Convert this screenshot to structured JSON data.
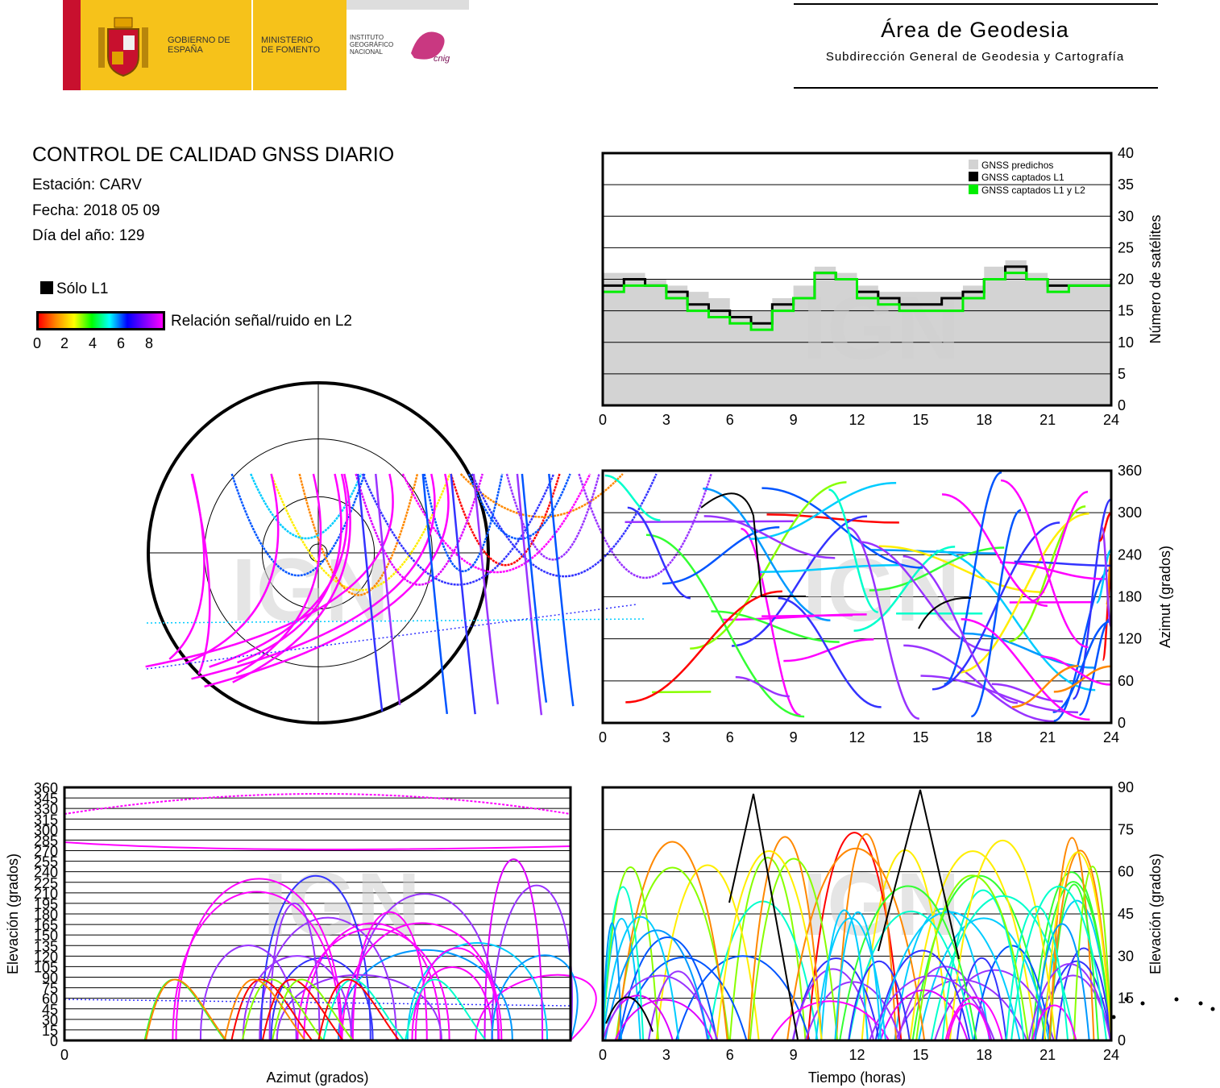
{
  "header": {
    "gov": "GOBIERNO DE ESPAÑA",
    "ministry": "MINISTERIO DE FOMENTO",
    "institute": "INSTITUTO GEOGRÁFICO NACIONAL",
    "cnig": "cnig",
    "area_title": "Área de Geodesia",
    "area_subtitle": "Subdirección General de Geodesia y Cartografía"
  },
  "info": {
    "title": "CONTROL DE CALIDAD GNSS DIARIO",
    "station": "Estación: CARV",
    "date": "Fecha: 2018 05 09",
    "doy": "Día del año: 129"
  },
  "legend": {
    "l1_only": "Sólo L1",
    "snr_label": "Relación señal/ruido en L2",
    "snr_ticks": [
      "0",
      "2",
      "4",
      "6",
      "8"
    ],
    "colors": [
      "#ff0000",
      "#ff8c00",
      "#ffff00",
      "#00ff00",
      "#00ffff",
      "#0000ff",
      "#8000ff",
      "#ff00ff"
    ]
  },
  "watermark": "IGN",
  "chart_data": [
    {
      "id": "satellites",
      "type": "area",
      "ylabel": "Número de satélites",
      "ylim": [
        0,
        40
      ],
      "yticks": [
        0,
        5,
        10,
        15,
        20,
        25,
        30,
        35,
        40
      ],
      "xlim": [
        0,
        24
      ],
      "xticks": [
        0,
        3,
        6,
        9,
        12,
        15,
        18,
        21,
        24
      ],
      "legend": [
        "GNSS predichos",
        "GNSS captados L1",
        "GNSS captados L1 y L2"
      ],
      "colors": {
        "predicted": "#d3d3d3",
        "l1": "#000000",
        "l1l2": "#00ee00"
      },
      "x": [
        0,
        1,
        2,
        3,
        4,
        5,
        6,
        7,
        8,
        9,
        10,
        11,
        12,
        13,
        14,
        15,
        16,
        17,
        18,
        19,
        20,
        21,
        22,
        23,
        24
      ],
      "predicted": [
        21,
        21,
        20,
        19,
        18,
        17,
        15,
        15,
        17,
        19,
        22,
        21,
        19,
        18,
        18,
        18,
        18,
        19,
        22,
        23,
        21,
        20,
        20,
        20,
        20
      ],
      "l1": [
        19,
        20,
        19,
        18,
        16,
        15,
        14,
        13,
        16,
        17,
        21,
        20,
        18,
        17,
        16,
        16,
        17,
        18,
        20,
        22,
        20,
        19,
        19,
        19,
        19
      ],
      "l1l2": [
        18,
        19,
        19,
        17,
        15,
        14,
        13,
        12,
        15,
        17,
        21,
        20,
        17,
        16,
        15,
        15,
        15,
        17,
        20,
        21,
        20,
        18,
        19,
        19,
        18
      ]
    },
    {
      "id": "skyplot",
      "type": "scatter",
      "rings_elevation": [
        0,
        30,
        60,
        90
      ]
    },
    {
      "id": "azimuth_time",
      "type": "scatter",
      "ylabel": "Azimut (grados)",
      "ylim": [
        0,
        360
      ],
      "yticks": [
        0,
        60,
        120,
        180,
        240,
        300,
        360
      ],
      "xlim": [
        0,
        24
      ],
      "xticks": [
        0,
        3,
        6,
        9,
        12,
        15,
        18,
        21,
        24
      ]
    },
    {
      "id": "elev_azimuth",
      "type": "scatter",
      "xlabel": "Azimut (grados)",
      "ylabel": "Elevación (grados)",
      "xlim": [
        0,
        360
      ],
      "xticks": [
        0
      ],
      "ylim": [
        0,
        360
      ],
      "yticks": [
        0,
        15,
        30,
        45,
        60,
        75,
        90,
        105,
        120,
        135,
        150,
        165,
        180,
        195,
        210,
        225,
        240,
        255,
        270,
        285,
        300,
        315,
        330,
        345,
        360
      ]
    },
    {
      "id": "elev_time",
      "type": "scatter",
      "xlabel": "Tiempo (horas)",
      "ylabel": "Elevación (grados)",
      "ylim": [
        0,
        90
      ],
      "yticks": [
        0,
        15,
        30,
        45,
        60,
        75,
        90
      ],
      "xlim": [
        0,
        24
      ],
      "xticks": [
        0,
        3,
        6,
        9,
        12,
        15,
        18,
        21,
        24
      ]
    }
  ]
}
